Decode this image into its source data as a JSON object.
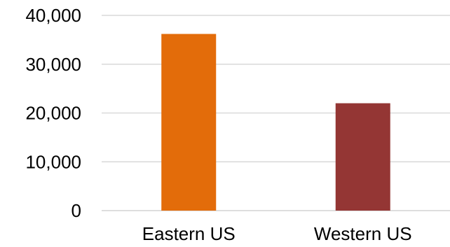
{
  "chart_data": {
    "type": "bar",
    "title": "",
    "xlabel": "",
    "ylabel": "",
    "categories": [
      "Eastern US",
      "Western US"
    ],
    "values": [
      36200,
      22000
    ],
    "bar_colors": [
      "#E36C0A",
      "#943634"
    ],
    "ylim": [
      0,
      40000
    ],
    "yticks": [
      0,
      10000,
      20000,
      30000,
      40000
    ],
    "ytick_labels": [
      "0",
      "10,000",
      "20,000",
      "30,000",
      "40,000"
    ],
    "grid": true,
    "legend": "none",
    "gridline_color": "#D9D9D9"
  }
}
